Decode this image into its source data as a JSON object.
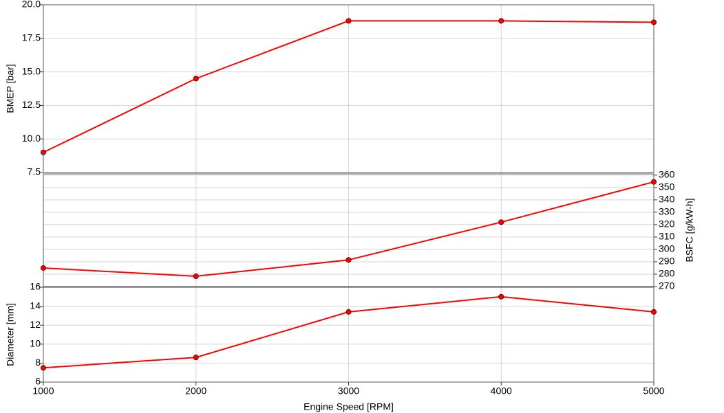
{
  "chart_data": [
    {
      "type": "line",
      "ylabel": "BMEP [bar]",
      "y_axis_side": "left",
      "grid": true,
      "x": [
        1000,
        2000,
        3000,
        4000,
        5000
      ],
      "xlim": [
        1000,
        5000
      ],
      "xticks": [
        1000,
        2000,
        3000,
        4000,
        5000
      ],
      "ylim": [
        7.5,
        20
      ],
      "yticks": [
        7.5,
        {
          "value": 10,
          "label": "10.0"
        },
        12.5,
        {
          "value": 15,
          "label": "15.0"
        },
        17.5,
        {
          "value": 20,
          "label": "20.0"
        }
      ],
      "series": [
        {
          "color": "#ff0000",
          "values": [
            9.0,
            14.5,
            18.8,
            18.8,
            18.7
          ]
        }
      ]
    },
    {
      "type": "line",
      "ylabel": "BSFC [g/kW-h]",
      "y_axis_side": "right",
      "grid": true,
      "x": [
        1000,
        2000,
        3000,
        4000,
        5000
      ],
      "xlim": [
        1000,
        5000
      ],
      "xticks": [
        1000,
        2000,
        3000,
        4000,
        5000
      ],
      "ylim": [
        270,
        361
      ],
      "yticks": [
        270,
        280,
        290,
        300,
        310,
        320,
        330,
        340,
        350,
        360
      ],
      "series": [
        {
          "color": "#ff0000",
          "values": [
            285,
            278.3,
            291.5,
            322,
            354.5
          ]
        }
      ]
    },
    {
      "type": "line",
      "ylabel": "Diameter [mm]",
      "y_axis_side": "left",
      "grid": true,
      "xlabel": "Engine Speed [RPM]",
      "x": [
        1000,
        2000,
        3000,
        4000,
        5000
      ],
      "xlim": [
        1000,
        5000
      ],
      "xticks": [
        1000,
        2000,
        3000,
        4000,
        5000
      ],
      "ylim": [
        6,
        16
      ],
      "yticks": [
        6,
        8,
        10,
        12,
        14,
        16
      ],
      "series": [
        {
          "color": "#ff0000",
          "values": [
            7.5,
            8.6,
            13.4,
            15.0,
            13.4
          ]
        }
      ]
    }
  ]
}
